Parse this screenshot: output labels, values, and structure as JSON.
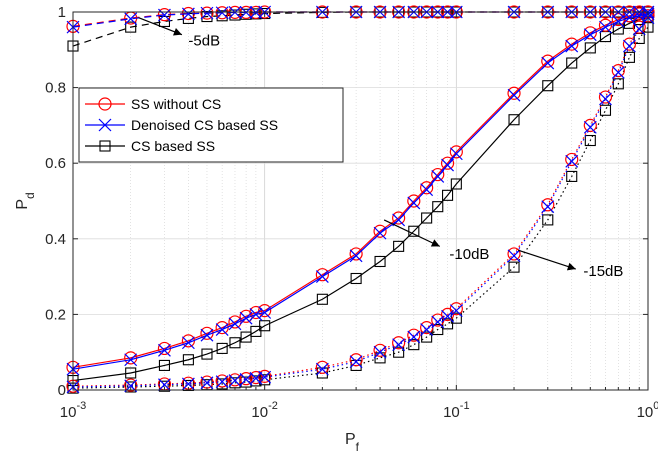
{
  "chart_data": {
    "type": "line",
    "title": "",
    "xlabel": "P",
    "xlabel_sub": "f",
    "ylabel": "P",
    "ylabel_sub": "d",
    "xscale": "log",
    "xlim": [
      0.001,
      1
    ],
    "ylim": [
      0,
      1
    ],
    "x_ticks": [
      {
        "value": 0.001,
        "base": "10",
        "exp": "-3"
      },
      {
        "value": 0.01,
        "base": "10",
        "exp": "-2"
      },
      {
        "value": 0.1,
        "base": "10",
        "exp": "-1"
      },
      {
        "value": 1,
        "base": "10",
        "exp": "0"
      }
    ],
    "y_ticks": [
      {
        "value": 0,
        "label": "0"
      },
      {
        "value": 0.2,
        "label": "0.2"
      },
      {
        "value": 0.4,
        "label": "0.4"
      },
      {
        "value": 0.6,
        "label": "0.6"
      },
      {
        "value": 0.8,
        "label": "0.8"
      },
      {
        "value": 1,
        "label": "1"
      }
    ],
    "grid": true,
    "legend_position": "upper-left",
    "legend": [
      {
        "label": "SS without CS",
        "color": "#ff0000",
        "marker": "circle"
      },
      {
        "label": "Denoised CS based SS",
        "color": "#0000ff",
        "marker": "cross"
      },
      {
        "label": "CS based SS",
        "color": "#000000",
        "marker": "square"
      }
    ],
    "x": [
      0.001,
      0.002,
      0.003,
      0.004,
      0.005,
      0.006,
      0.007,
      0.008,
      0.009,
      0.01,
      0.02,
      0.03,
      0.04,
      0.05,
      0.06,
      0.07,
      0.08,
      0.09,
      0.1,
      0.2,
      0.3,
      0.4,
      0.5,
      0.6,
      0.7,
      0.8,
      0.9,
      1
    ],
    "series": [
      {
        "snr": "-5dB",
        "method": "SS without CS",
        "color": "#ff0000",
        "marker": "circle",
        "dash": "dash",
        "values": [
          0.962,
          0.984,
          0.993,
          0.996,
          0.997,
          0.998,
          0.999,
          0.999,
          0.999,
          1,
          1,
          1,
          1,
          1,
          1,
          1,
          1,
          1,
          1,
          1,
          1,
          1,
          1,
          1,
          1,
          1,
          1,
          1
        ]
      },
      {
        "snr": "-5dB",
        "method": "Denoised CS based SS",
        "color": "#0000ff",
        "marker": "cross",
        "dash": "dash",
        "values": [
          0.96,
          0.982,
          0.992,
          0.995,
          0.997,
          0.998,
          0.999,
          0.999,
          0.999,
          1,
          1,
          1,
          1,
          1,
          1,
          1,
          1,
          1,
          1,
          1,
          1,
          1,
          1,
          1,
          1,
          1,
          1,
          1
        ]
      },
      {
        "snr": "-5dB",
        "method": "CS based SS",
        "color": "#000000",
        "marker": "square",
        "dash": "dash",
        "values": [
          0.91,
          0.96,
          0.975,
          0.983,
          0.988,
          0.99,
          0.992,
          0.994,
          0.995,
          0.996,
          0.999,
          1,
          1,
          1,
          1,
          1,
          1,
          1,
          1,
          1,
          1,
          1,
          1,
          1,
          1,
          1,
          1,
          1
        ]
      },
      {
        "snr": "-10dB",
        "method": "SS without CS",
        "color": "#ff0000",
        "marker": "circle",
        "dash": "solid",
        "values": [
          0.06,
          0.085,
          0.11,
          0.13,
          0.15,
          0.165,
          0.18,
          0.195,
          0.205,
          0.21,
          0.305,
          0.36,
          0.42,
          0.455,
          0.5,
          0.535,
          0.57,
          0.6,
          0.63,
          0.785,
          0.87,
          0.915,
          0.945,
          0.965,
          0.98,
          0.99,
          0.995,
          1
        ]
      },
      {
        "snr": "-10dB",
        "method": "Denoised CS based SS",
        "color": "#0000ff",
        "marker": "cross",
        "dash": "solid",
        "values": [
          0.055,
          0.08,
          0.105,
          0.125,
          0.145,
          0.16,
          0.175,
          0.19,
          0.2,
          0.205,
          0.3,
          0.355,
          0.415,
          0.45,
          0.495,
          0.53,
          0.565,
          0.595,
          0.625,
          0.78,
          0.865,
          0.91,
          0.94,
          0.96,
          0.975,
          0.985,
          0.99,
          0.995
        ]
      },
      {
        "snr": "-10dB",
        "method": "CS based SS",
        "color": "#000000",
        "marker": "square",
        "dash": "solid",
        "values": [
          0.025,
          0.045,
          0.065,
          0.08,
          0.095,
          0.11,
          0.125,
          0.14,
          0.155,
          0.17,
          0.24,
          0.295,
          0.34,
          0.38,
          0.42,
          0.455,
          0.485,
          0.515,
          0.545,
          0.715,
          0.805,
          0.865,
          0.905,
          0.935,
          0.955,
          0.97,
          0.98,
          0.985
        ]
      },
      {
        "snr": "-15dB",
        "method": "SS without CS",
        "color": "#ff0000",
        "marker": "circle",
        "dash": "dot",
        "values": [
          0.01,
          0.013,
          0.016,
          0.018,
          0.021,
          0.024,
          0.027,
          0.03,
          0.033,
          0.036,
          0.06,
          0.08,
          0.105,
          0.125,
          0.145,
          0.165,
          0.185,
          0.2,
          0.215,
          0.36,
          0.49,
          0.61,
          0.7,
          0.775,
          0.845,
          0.915,
          0.96,
          0.99
        ]
      },
      {
        "snr": "-15dB",
        "method": "Denoised CS based SS",
        "color": "#0000ff",
        "marker": "cross",
        "dash": "dot",
        "values": [
          0.008,
          0.011,
          0.014,
          0.016,
          0.019,
          0.022,
          0.025,
          0.028,
          0.031,
          0.034,
          0.055,
          0.075,
          0.1,
          0.12,
          0.14,
          0.16,
          0.18,
          0.195,
          0.21,
          0.355,
          0.485,
          0.605,
          0.695,
          0.77,
          0.84,
          0.91,
          0.955,
          0.985
        ]
      },
      {
        "snr": "-15dB",
        "method": "CS based SS",
        "color": "#000000",
        "marker": "square",
        "dash": "dot",
        "values": [
          0.005,
          0.008,
          0.01,
          0.012,
          0.014,
          0.016,
          0.019,
          0.021,
          0.024,
          0.027,
          0.045,
          0.065,
          0.085,
          0.1,
          0.12,
          0.14,
          0.16,
          0.175,
          0.19,
          0.325,
          0.45,
          0.565,
          0.66,
          0.74,
          0.81,
          0.88,
          0.93,
          0.96
        ]
      }
    ],
    "annotations": [
      {
        "text": "-5dB",
        "arrow_from": [
          0.0022,
          0.985
        ],
        "arrow_to": [
          0.0037,
          0.94
        ],
        "text_at": [
          0.004,
          0.925
        ]
      },
      {
        "text": "-10dB",
        "arrow_from": [
          0.042,
          0.45
        ],
        "arrow_to": [
          0.082,
          0.38
        ],
        "text_at": [
          0.092,
          0.36
        ]
      },
      {
        "text": "-15dB",
        "arrow_from": [
          0.21,
          0.37
        ],
        "arrow_to": [
          0.42,
          0.32
        ],
        "text_at": [
          0.46,
          0.315
        ]
      }
    ]
  }
}
